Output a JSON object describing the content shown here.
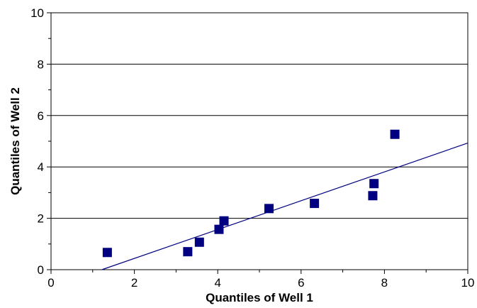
{
  "chart_data": {
    "type": "scatter",
    "title": "",
    "xlabel": "Quantiles of Well 1",
    "ylabel": "Quantiles of Well 2",
    "xlim": [
      0,
      10
    ],
    "ylim": [
      0,
      10
    ],
    "x_ticks": [
      "0",
      "2",
      "4",
      "6",
      "8",
      "10"
    ],
    "y_ticks": [
      "0",
      "2",
      "4",
      "6",
      "8",
      "10"
    ],
    "grid": "horizontal",
    "legend": "none",
    "marker_color": "#000080",
    "line_color": "#000080",
    "points": [
      {
        "x": 1.35,
        "y": 0.67
      },
      {
        "x": 3.28,
        "y": 0.7
      },
      {
        "x": 3.56,
        "y": 1.07
      },
      {
        "x": 4.03,
        "y": 1.57
      },
      {
        "x": 4.15,
        "y": 1.9
      },
      {
        "x": 5.23,
        "y": 2.38
      },
      {
        "x": 6.32,
        "y": 2.58
      },
      {
        "x": 7.72,
        "y": 2.88
      },
      {
        "x": 7.75,
        "y": 3.35
      },
      {
        "x": 8.25,
        "y": 5.27
      }
    ],
    "trendline": {
      "x": [
        1.22,
        10
      ],
      "y": [
        0,
        4.93
      ]
    }
  }
}
